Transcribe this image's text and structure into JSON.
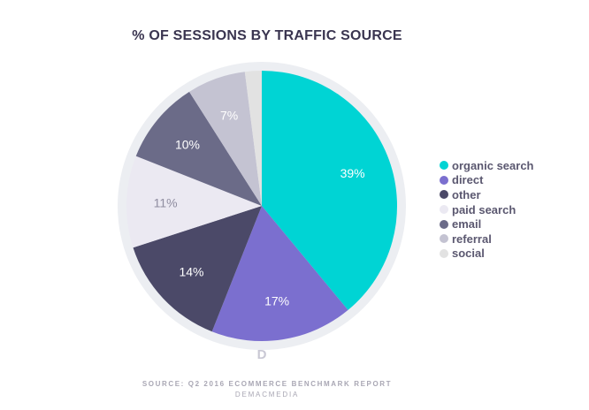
{
  "chart_data": {
    "type": "pie",
    "title": "% OF SESSIONS BY TRAFFIC SOURCE",
    "categories": [
      "organic search",
      "direct",
      "other",
      "paid search",
      "email",
      "referral",
      "social"
    ],
    "values": [
      39,
      17,
      14,
      11,
      10,
      7,
      2
    ],
    "value_labels": [
      "39%",
      "17%",
      "14%",
      "11%",
      "10%",
      "7%",
      ""
    ],
    "colors": [
      "#00d4d4",
      "#7b6fcf",
      "#4b4968",
      "#ebe9f2",
      "#6b6b88",
      "#c4c3d2",
      "#e2e2e2"
    ],
    "label_colors": [
      "#ffffff",
      "#ffffff",
      "#ffffff",
      "#8f8da0",
      "#ffffff",
      "#ffffff",
      "#ffffff"
    ],
    "legend_position": "right",
    "start_angle_deg": 0,
    "direction": "clockwise"
  },
  "source": "SOURCE: Q2 2016 ECOMMERCE BENCHMARK REPORT",
  "brand": "DEMACMEDIA",
  "logo_glyph": "D",
  "ring_color": "#eceef2"
}
